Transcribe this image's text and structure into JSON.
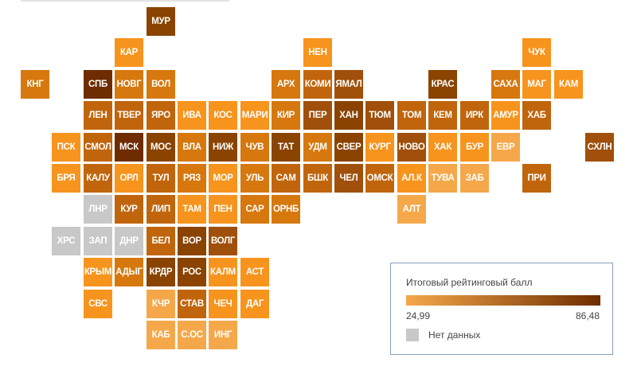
{
  "colors": {
    "low": "#f5a84a",
    "high": "#6e2c00",
    "no_data": "#c8c8c8"
  },
  "legend": {
    "title": "Итоговый рейтинговый балл",
    "min_label": "24,99",
    "max_label": "86,48",
    "no_data_label": "Нет данных"
  },
  "regions": [
    {
      "label": "МУР",
      "col": 5,
      "row": 0,
      "color": "#8a4400"
    },
    {
      "label": "КАР",
      "col": 4,
      "row": 1,
      "color": "#f7941d"
    },
    {
      "label": "НЕН",
      "col": 10,
      "row": 1,
      "color": "#f7941d"
    },
    {
      "label": "ЧУК",
      "col": 17,
      "row": 1,
      "color": "#f7941d"
    },
    {
      "label": "КНГ",
      "col": 1,
      "row": 2,
      "color": "#d6780e"
    },
    {
      "label": "СПБ",
      "col": 3,
      "row": 2,
      "color": "#6e2c00"
    },
    {
      "label": "НОВГ",
      "col": 4,
      "row": 2,
      "color": "#d6780e"
    },
    {
      "label": "ВОЛ",
      "col": 5,
      "row": 2,
      "color": "#d6780e"
    },
    {
      "label": "АРХ",
      "col": 9,
      "row": 2,
      "color": "#d6780e"
    },
    {
      "label": "КОМИ",
      "col": 10,
      "row": 2,
      "color": "#c1650c"
    },
    {
      "label": "ЯМАЛ",
      "col": 11,
      "row": 2,
      "color": "#a0500a"
    },
    {
      "label": "КРАС",
      "col": 14,
      "row": 2,
      "color": "#8a4400"
    },
    {
      "label": "САХА",
      "col": 16,
      "row": 2,
      "color": "#d6780e"
    },
    {
      "label": "МАГ",
      "col": 17,
      "row": 2,
      "color": "#f7941d"
    },
    {
      "label": "КАМ",
      "col": 18,
      "row": 2,
      "color": "#f7941d"
    },
    {
      "label": "ЛЕН",
      "col": 3,
      "row": 3,
      "color": "#c1650c"
    },
    {
      "label": "ТВЕР",
      "col": 4,
      "row": 3,
      "color": "#c1650c"
    },
    {
      "label": "ЯРО",
      "col": 5,
      "row": 3,
      "color": "#c1650c"
    },
    {
      "label": "ИВА",
      "col": 6,
      "row": 3,
      "color": "#f7941d"
    },
    {
      "label": "КОС",
      "col": 7,
      "row": 3,
      "color": "#f7941d"
    },
    {
      "label": "МАРИ",
      "col": 8,
      "row": 3,
      "color": "#f7941d"
    },
    {
      "label": "КИР",
      "col": 9,
      "row": 3,
      "color": "#d6780e"
    },
    {
      "label": "ПЕР",
      "col": 10,
      "row": 3,
      "color": "#a0500a"
    },
    {
      "label": "ХАН",
      "col": 11,
      "row": 3,
      "color": "#8a4400"
    },
    {
      "label": "ТЮМ",
      "col": 12,
      "row": 3,
      "color": "#a0500a"
    },
    {
      "label": "ТОМ",
      "col": 13,
      "row": 3,
      "color": "#c1650c"
    },
    {
      "label": "КЕМ",
      "col": 14,
      "row": 3,
      "color": "#c1650c"
    },
    {
      "label": "ИРК",
      "col": 15,
      "row": 3,
      "color": "#c1650c"
    },
    {
      "label": "АМУР",
      "col": 16,
      "row": 3,
      "color": "#f7941d"
    },
    {
      "label": "ХАБ",
      "col": 17,
      "row": 3,
      "color": "#c1650c"
    },
    {
      "label": "ПСК",
      "col": 2,
      "row": 4,
      "color": "#f7941d"
    },
    {
      "label": "СМОЛ",
      "col": 3,
      "row": 4,
      "color": "#c1650c"
    },
    {
      "label": "МСК",
      "col": 4,
      "row": 4,
      "color": "#6e2c00"
    },
    {
      "label": "МОС",
      "col": 5,
      "row": 4,
      "color": "#8a4400"
    },
    {
      "label": "ВЛА",
      "col": 6,
      "row": 4,
      "color": "#d6780e"
    },
    {
      "label": "НИЖ",
      "col": 7,
      "row": 4,
      "color": "#8a4400"
    },
    {
      "label": "ЧУВ",
      "col": 8,
      "row": 4,
      "color": "#d6780e"
    },
    {
      "label": "ТАТ",
      "col": 9,
      "row": 4,
      "color": "#8a4400"
    },
    {
      "label": "УДМ",
      "col": 10,
      "row": 4,
      "color": "#d6780e"
    },
    {
      "label": "СВЕР",
      "col": 11,
      "row": 4,
      "color": "#8a4400"
    },
    {
      "label": "КУРГ",
      "col": 12,
      "row": 4,
      "color": "#f7941d"
    },
    {
      "label": "НОВО",
      "col": 13,
      "row": 4,
      "color": "#a0500a"
    },
    {
      "label": "ХАК",
      "col": 14,
      "row": 4,
      "color": "#f7941d"
    },
    {
      "label": "БУР",
      "col": 15,
      "row": 4,
      "color": "#f7941d"
    },
    {
      "label": "ЕВР",
      "col": 16,
      "row": 4,
      "color": "#f5a84a"
    },
    {
      "label": "СХЛН",
      "col": 19,
      "row": 4,
      "color": "#a0500a"
    },
    {
      "label": "БРЯ",
      "col": 2,
      "row": 5,
      "color": "#f7941d"
    },
    {
      "label": "КАЛУ",
      "col": 3,
      "row": 5,
      "color": "#c1650c"
    },
    {
      "label": "ОРЛ",
      "col": 4,
      "row": 5,
      "color": "#f7941d"
    },
    {
      "label": "ТУЛ",
      "col": 5,
      "row": 5,
      "color": "#c1650c"
    },
    {
      "label": "РЯЗ",
      "col": 6,
      "row": 5,
      "color": "#d6780e"
    },
    {
      "label": "МОР",
      "col": 7,
      "row": 5,
      "color": "#f7941d"
    },
    {
      "label": "УЛЬ",
      "col": 8,
      "row": 5,
      "color": "#d6780e"
    },
    {
      "label": "САМ",
      "col": 9,
      "row": 5,
      "color": "#c1650c"
    },
    {
      "label": "БШК",
      "col": 10,
      "row": 5,
      "color": "#c1650c"
    },
    {
      "label": "ЧЕЛ",
      "col": 11,
      "row": 5,
      "color": "#a0500a"
    },
    {
      "label": "ОМСК",
      "col": 12,
      "row": 5,
      "color": "#c1650c"
    },
    {
      "label": "АЛ.К",
      "col": 13,
      "row": 5,
      "color": "#f7941d"
    },
    {
      "label": "ТУВА",
      "col": 14,
      "row": 5,
      "color": "#f5a84a"
    },
    {
      "label": "ЗАБ",
      "col": 15,
      "row": 5,
      "color": "#f5a84a"
    },
    {
      "label": "ПРИ",
      "col": 17,
      "row": 5,
      "color": "#c1650c"
    },
    {
      "label": "ЛНР",
      "col": 3,
      "row": 6,
      "color": "#c8c8c8"
    },
    {
      "label": "КУР",
      "col": 4,
      "row": 6,
      "color": "#c1650c"
    },
    {
      "label": "ЛИП",
      "col": 5,
      "row": 6,
      "color": "#c1650c"
    },
    {
      "label": "ТАМ",
      "col": 6,
      "row": 6,
      "color": "#f7941d"
    },
    {
      "label": "ПЕН",
      "col": 7,
      "row": 6,
      "color": "#f7941d"
    },
    {
      "label": "САР",
      "col": 8,
      "row": 6,
      "color": "#d6780e"
    },
    {
      "label": "ОРНБ",
      "col": 9,
      "row": 6,
      "color": "#d6780e"
    },
    {
      "label": "АЛТ",
      "col": 13,
      "row": 6,
      "color": "#f5a84a"
    },
    {
      "label": "ХРС",
      "col": 2,
      "row": 7,
      "color": "#c8c8c8"
    },
    {
      "label": "ЗАП",
      "col": 3,
      "row": 7,
      "color": "#c8c8c8"
    },
    {
      "label": "ДНР",
      "col": 4,
      "row": 7,
      "color": "#c8c8c8"
    },
    {
      "label": "БЕЛ",
      "col": 5,
      "row": 7,
      "color": "#c1650c"
    },
    {
      "label": "ВОР",
      "col": 6,
      "row": 7,
      "color": "#8a4400"
    },
    {
      "label": "ВОЛГ",
      "col": 7,
      "row": 7,
      "color": "#a0500a"
    },
    {
      "label": "КРЫМ",
      "col": 3,
      "row": 8,
      "color": "#f7941d"
    },
    {
      "label": "АДЫГ",
      "col": 4,
      "row": 8,
      "color": "#d6780e"
    },
    {
      "label": "КРДР",
      "col": 5,
      "row": 8,
      "color": "#8a4400"
    },
    {
      "label": "РОС",
      "col": 6,
      "row": 8,
      "color": "#8a4400"
    },
    {
      "label": "КАЛМ",
      "col": 7,
      "row": 8,
      "color": "#f7941d"
    },
    {
      "label": "АСТ",
      "col": 8,
      "row": 8,
      "color": "#f7941d"
    },
    {
      "label": "СВС",
      "col": 3,
      "row": 9,
      "color": "#f7941d"
    },
    {
      "label": "КЧР",
      "col": 5,
      "row": 9,
      "color": "#f5a84a"
    },
    {
      "label": "СТАВ",
      "col": 6,
      "row": 9,
      "color": "#c1650c"
    },
    {
      "label": "ЧЕЧ",
      "col": 7,
      "row": 9,
      "color": "#f7941d"
    },
    {
      "label": "ДАГ",
      "col": 8,
      "row": 9,
      "color": "#f7941d"
    },
    {
      "label": "КАБ",
      "col": 5,
      "row": 10,
      "color": "#f5a84a"
    },
    {
      "label": "С.ОС",
      "col": 6,
      "row": 10,
      "color": "#f5a84a"
    },
    {
      "label": "ИНГ",
      "col": 7,
      "row": 10,
      "color": "#f5a84a"
    }
  ]
}
